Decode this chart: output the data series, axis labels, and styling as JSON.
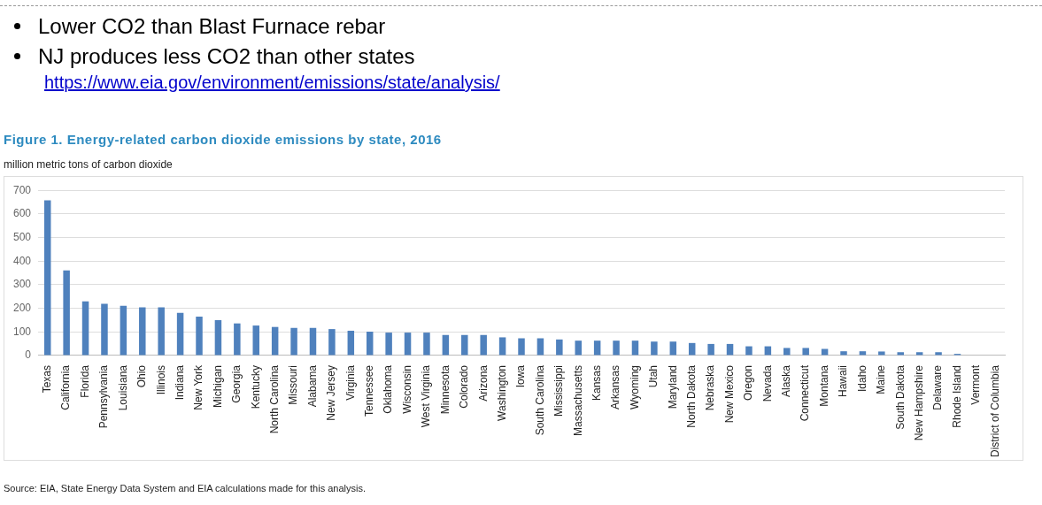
{
  "chart_data": {
    "type": "bar",
    "title": "Figure 1. Energy-related carbon dioxide emissions by state, 2016",
    "ylabel": "million metric tons of carbon dioxide",
    "annotations": [
      "Lower CO2 than Blast Furnace rebar",
      "NJ produces less CO2 than other states",
      "https://www.eia.gov/environment/emissions/state/analysis/",
      "Source:  EIA, State Energy Data System and EIA calculations made for this analysis."
    ],
    "categories": [
      "Texas",
      "California",
      "Florida",
      "Pennsylvania",
      "Louisiana",
      "Ohio",
      "Illinois",
      "Indiana",
      "New York",
      "Michigan",
      "Georgia",
      "Kentucky",
      "North Carolina",
      "Missouri",
      "Alabama",
      "New Jersey",
      "Virginia",
      "Tennessee",
      "Oklahoma",
      "Wisconsin",
      "West Virginia",
      "Minnesota",
      "Colorado",
      "Arizona",
      "Washington",
      "Iowa",
      "South Carolina",
      "Mississippi",
      "Massachusetts",
      "Kansas",
      "Arkansas",
      "Wyoming",
      "Utah",
      "Maryland",
      "North Dakota",
      "Nebraska",
      "New Mexico",
      "Oregon",
      "Nevada",
      "Alaska",
      "Connecticut",
      "Montana",
      "Hawaii",
      "Idaho",
      "Maine",
      "South Dakota",
      "New Hampshire",
      "Delaware",
      "Rhode Island",
      "Vermont",
      "District of Columbia"
    ],
    "values": [
      658,
      361,
      229,
      219,
      211,
      204,
      204,
      181,
      165,
      150,
      136,
      127,
      121,
      117,
      117,
      112,
      105,
      101,
      97,
      97,
      97,
      87,
      87,
      87,
      77,
      73,
      73,
      68,
      63,
      63,
      63,
      63,
      59,
      59,
      53,
      49,
      49,
      39,
      39,
      32,
      32,
      28,
      18,
      18,
      17,
      14,
      14,
      14,
      7,
      null,
      null
    ],
    "color": "#4f81bd",
    "ylim": [
      0,
      700
    ],
    "yticks": [
      0,
      100,
      200,
      300,
      400,
      500,
      600,
      700
    ],
    "grid": "y",
    "legend": false
  }
}
